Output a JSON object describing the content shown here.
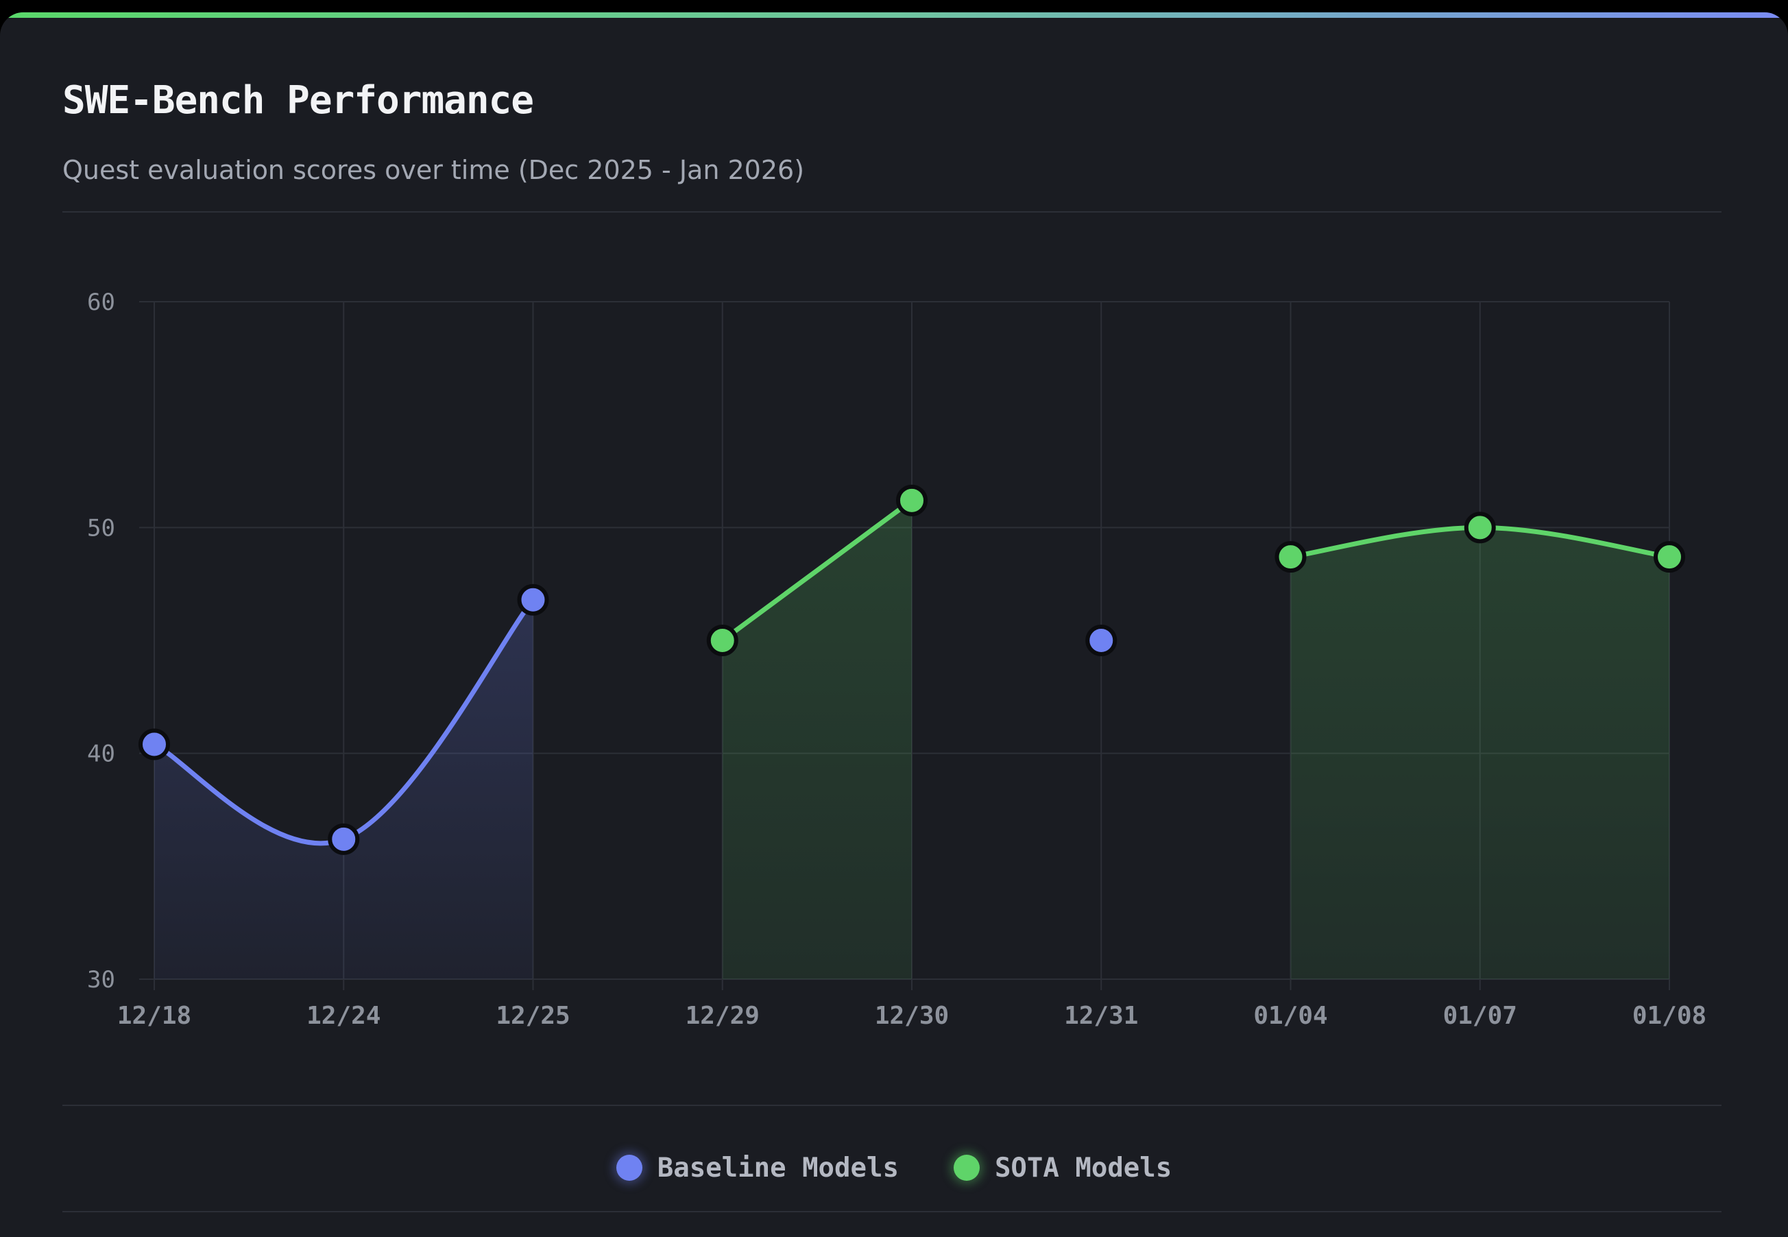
{
  "card": {
    "title": "SWE-Bench Performance",
    "subtitle": "Quest evaluation scores over time (Dec 2025 - Jan 2026)"
  },
  "colors": {
    "baseline": "#6f82f2",
    "sota": "#5fd469",
    "background": "#1a1c22",
    "grid": "#2c2f37",
    "tick": "#8d929c"
  },
  "legend": {
    "items": [
      {
        "key": "baseline",
        "label": "Baseline Models"
      },
      {
        "key": "sota",
        "label": "SOTA Models"
      }
    ]
  },
  "chart_data": {
    "type": "line",
    "title": "SWE-Bench Performance",
    "subtitle": "Quest evaluation scores over time (Dec 2025 - Jan 2026)",
    "xlabel": "",
    "ylabel": "",
    "categories": [
      "12/18",
      "12/24",
      "12/25",
      "12/29",
      "12/30",
      "12/31",
      "01/04",
      "01/07",
      "01/08"
    ],
    "ylim": [
      30,
      60
    ],
    "yticks": [
      30,
      40,
      50,
      60
    ],
    "grid": true,
    "legend_position": "bottom-center",
    "points": [
      {
        "x": "12/18",
        "y": 40.4,
        "series": "baseline"
      },
      {
        "x": "12/24",
        "y": 36.2,
        "series": "baseline"
      },
      {
        "x": "12/25",
        "y": 46.8,
        "series": "baseline"
      },
      {
        "x": "12/29",
        "y": 45.0,
        "series": "sota"
      },
      {
        "x": "12/30",
        "y": 51.2,
        "series": "sota"
      },
      {
        "x": "12/31",
        "y": 45.0,
        "series": "baseline"
      },
      {
        "x": "01/04",
        "y": 48.7,
        "series": "sota"
      },
      {
        "x": "01/07",
        "y": 50.0,
        "series": "sota"
      },
      {
        "x": "01/08",
        "y": 48.7,
        "series": "sota"
      }
    ],
    "series": [
      {
        "name": "Baseline Models",
        "key": "baseline"
      },
      {
        "name": "SOTA Models",
        "key": "sota"
      }
    ]
  }
}
